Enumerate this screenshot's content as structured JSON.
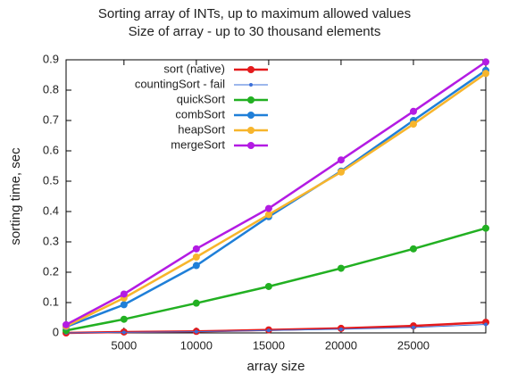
{
  "chart_data": {
    "type": "line",
    "title": "Sorting array of INTs, up to maximum allowed values",
    "subtitle": "Size of array - up to 30 thousand elements",
    "x_label": "array size",
    "y_label": "sorting time, sec",
    "x": [
      1000,
      5000,
      10000,
      15000,
      20000,
      25000,
      30000
    ],
    "series": [
      {
        "name": "sort (native)",
        "color": "#e41a1c",
        "values": [
          0,
          0.003,
          0.005,
          0.01,
          0.015,
          0.023,
          0.035
        ]
      },
      {
        "name": "countingSort - fail",
        "color": "#3b6fd8",
        "values": [
          0,
          0.002,
          0.004,
          0.008,
          0.012,
          0.018,
          0.028
        ]
      },
      {
        "name": "quickSort",
        "color": "#22b022",
        "values": [
          0.008,
          0.045,
          0.098,
          0.153,
          0.213,
          0.277,
          0.345
        ]
      },
      {
        "name": "combSort",
        "color": "#1f7fd8",
        "values": [
          0.02,
          0.093,
          0.222,
          0.383,
          0.533,
          0.7,
          0.865
        ]
      },
      {
        "name": "heapSort",
        "color": "#f7b52c",
        "values": [
          0.022,
          0.115,
          0.25,
          0.39,
          0.53,
          0.688,
          0.855
        ]
      },
      {
        "name": "mergeSort",
        "color": "#b31be3",
        "values": [
          0.027,
          0.128,
          0.277,
          0.41,
          0.57,
          0.73,
          0.893
        ]
      }
    ],
    "xlim": [
      1000,
      30000
    ],
    "xticks": [
      5000,
      10000,
      15000,
      20000,
      25000
    ],
    "ylim": [
      0,
      0.9
    ],
    "yticks": [
      0,
      0.1,
      0.2,
      0.3,
      0.4,
      0.5,
      0.6,
      0.7,
      0.8,
      0.9
    ],
    "legend": "top-left"
  }
}
